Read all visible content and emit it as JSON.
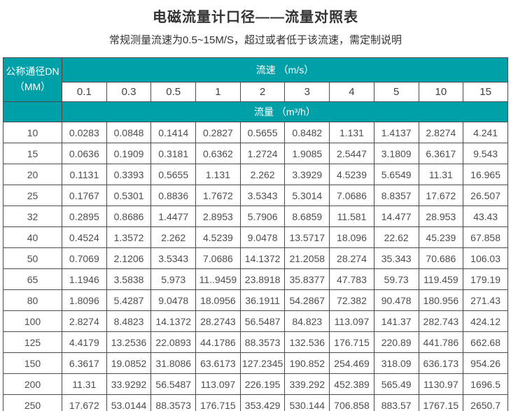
{
  "page": {
    "title": "电磁流量计口径——流量对照表",
    "subtitle": "常规测量流速为0.5~15M/S，超过或者低于该流速，需定制说明"
  },
  "colors": {
    "header_teal": "#00a0a8",
    "header_text": "#ffffff",
    "cell_border": "#4a4a4a",
    "data_text": "#4d4d4d"
  },
  "table": {
    "corner_header_line1": "公称通径DN",
    "corner_header_line2": "（MM）",
    "velocity_band_label": "流速 （m/s）",
    "flow_band_label": "流量 （m³/h）",
    "velocities": [
      "0.1",
      "0.3",
      "0.5",
      "1",
      "2",
      "3",
      "4",
      "5",
      "10",
      "15"
    ],
    "rows": [
      {
        "dn": "10",
        "values": [
          "0.0283",
          "0.0848",
          "0.1414",
          "0.2827",
          "0.5655",
          "0.8482",
          "1.131",
          "1.4137",
          "2.8274",
          "4.241"
        ]
      },
      {
        "dn": "15",
        "values": [
          "0.0636",
          "0.1909",
          "0.3181",
          "0.6362",
          "1.2724",
          "1.9085",
          "2.5447",
          "3.1809",
          "6.3617",
          "9.543"
        ]
      },
      {
        "dn": "20",
        "values": [
          "0.1131",
          "0.3393",
          "0.5655",
          "1.131",
          "2.262",
          "3.3929",
          "4.5239",
          "5.6549",
          "11.31",
          "16.965"
        ]
      },
      {
        "dn": "25",
        "values": [
          "0.1767",
          "0.5301",
          "0.8836",
          "1.7672",
          "3.5343",
          "5.3014",
          "7.0686",
          "8.8357",
          "17.672",
          "26.507"
        ]
      },
      {
        "dn": "32",
        "values": [
          "0.2895",
          "0.8686",
          "1.4477",
          "2.8953",
          "5.7906",
          "8.6859",
          "11.581",
          "14.477",
          "28.953",
          "43.43"
        ]
      },
      {
        "dn": "40",
        "values": [
          "0.4524",
          "1.3572",
          "2.262",
          "4.5239",
          "9.0478",
          "13.5717",
          "18.096",
          "22.62",
          "45.239",
          "67.858"
        ]
      },
      {
        "dn": "50",
        "values": [
          "0.7069",
          "2.1206",
          "3.5343",
          "7.0686",
          "14.1372",
          "21.2058",
          "28.274",
          "35.343",
          "70.686",
          "106.03"
        ]
      },
      {
        "dn": "65",
        "values": [
          "1.1946",
          "3.5838",
          "5.973",
          "11..9459",
          "23.8918",
          "35.8377",
          "47.783",
          "59.73",
          "119.459",
          "179.19"
        ]
      },
      {
        "dn": "80",
        "values": [
          "1.8096",
          "5.4287",
          "9.0478",
          "18.0956",
          "36.1911",
          "54.2867",
          "72.382",
          "90.478",
          "180.956",
          "271.43"
        ]
      },
      {
        "dn": "100",
        "values": [
          "2.8274",
          "8.4823",
          "14.1372",
          "28.2743",
          "56.5487",
          "84.823",
          "113.097",
          "141.37",
          "282.743",
          "424.12"
        ]
      },
      {
        "dn": "125",
        "values": [
          "4.4179",
          "13.2536",
          "22.0893",
          "44.1786",
          "88.3573",
          "132.536",
          "176.715",
          "220.89",
          "441.786",
          "662.68"
        ]
      },
      {
        "dn": "150",
        "values": [
          "6.3617",
          "19.0852",
          "31.8086",
          "63.6173",
          "127.2345",
          "190.852",
          "254.469",
          "318.09",
          "636.173",
          "954.26"
        ]
      },
      {
        "dn": "200",
        "values": [
          "11.31",
          "33.9292",
          "56.5487",
          "113.097",
          "226.195",
          "339.292",
          "452.389",
          "565.49",
          "1130.97",
          "1696.5"
        ]
      },
      {
        "dn": "250",
        "values": [
          "17.672",
          "53.0144",
          "88.3573",
          "176.715",
          "353.429",
          "530.144",
          "706.858",
          "883.57",
          "1767.15",
          "2650.7"
        ]
      }
    ]
  }
}
